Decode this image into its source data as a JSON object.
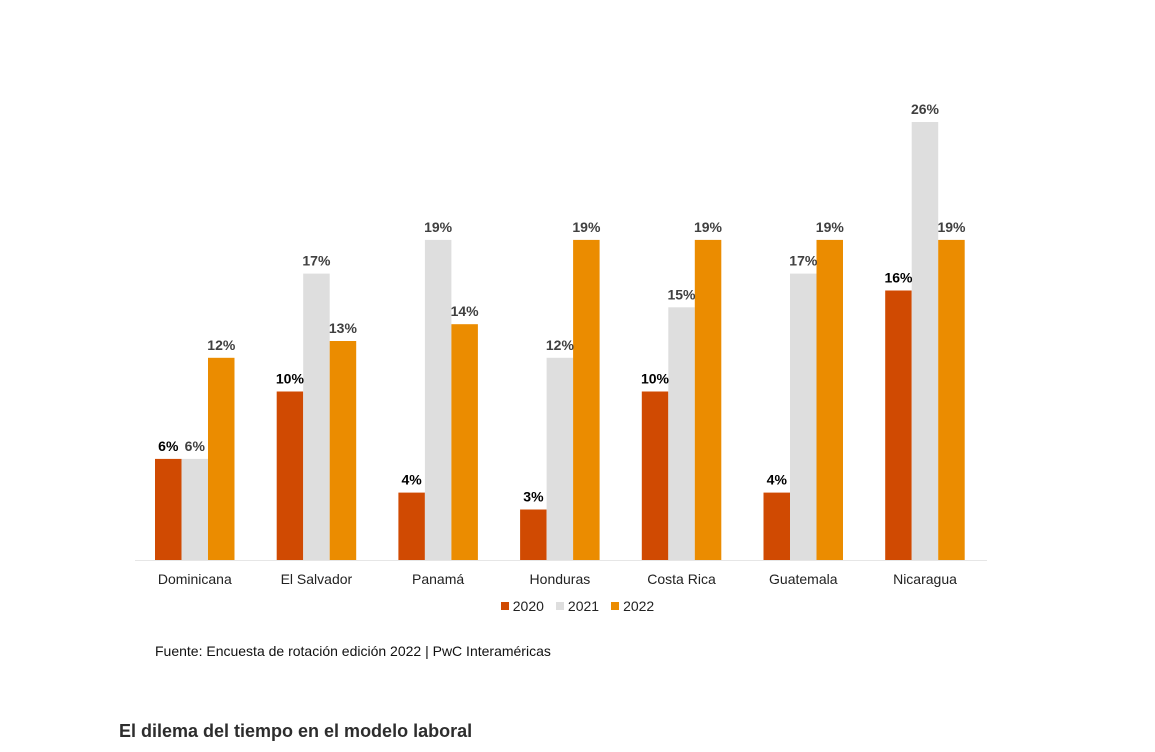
{
  "chart_data": {
    "type": "bar",
    "title": "",
    "xlabel": "",
    "ylabel": "",
    "ylim": [
      0,
      26
    ],
    "grid": false,
    "legend_position": "bottom",
    "categories": [
      "Dominicana",
      "El Salvador",
      "Panamá",
      "Honduras",
      "Costa Rica",
      "Guatemala",
      "Nicaragua"
    ],
    "series": [
      {
        "name": "2020",
        "color": "#d04a02",
        "label_color": "#000000",
        "values": [
          6,
          10,
          4,
          3,
          10,
          4,
          16
        ]
      },
      {
        "name": "2021",
        "color": "#dedede",
        "label_color": "#404040",
        "values": [
          6,
          17,
          19,
          12,
          15,
          17,
          26
        ]
      },
      {
        "name": "2022",
        "color": "#eb8c00",
        "label_color": "#404040",
        "values": [
          12,
          13,
          14,
          19,
          19,
          19,
          19
        ]
      }
    ],
    "value_suffix": "%"
  },
  "source": "Fuente: Encuesta de rotación edición 2022 | PwC Interaméricas",
  "section_heading": "El dilema del tiempo en el modelo laboral"
}
